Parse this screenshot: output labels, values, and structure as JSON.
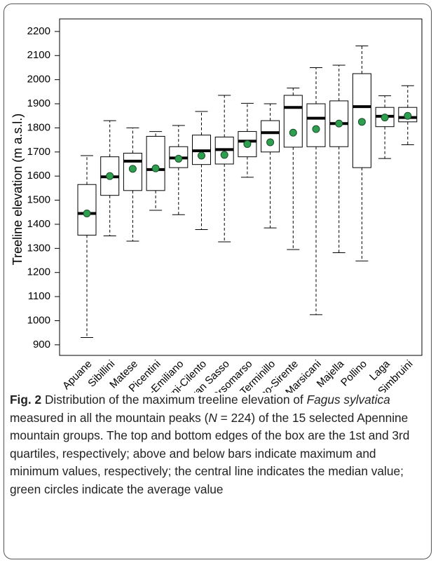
{
  "chart_data": {
    "type": "box",
    "y_label": "Treeline elevation (m a.s.l.)",
    "categories": [
      "Apuane",
      "Sibillini",
      "Matese",
      "Picentini",
      "Tosco-Emiliano",
      "Alburni-Cilento",
      "Gran Sasso",
      "Orsomarso",
      "Terminillo",
      "Velino-Sirente",
      "Marsicani",
      "Majella",
      "Pollino",
      "Laga",
      "Simbruini"
    ],
    "min": [
      930,
      1352,
      1330,
      1458,
      1440,
      1378,
      1327,
      1595,
      1385,
      1295,
      1025,
      1282,
      1248,
      1673,
      1730
    ],
    "q1": [
      1355,
      1520,
      1540,
      1540,
      1635,
      1648,
      1650,
      1680,
      1700,
      1720,
      1722,
      1722,
      1635,
      1805,
      1825
    ],
    "median": [
      1445,
      1597,
      1662,
      1627,
      1675,
      1705,
      1710,
      1745,
      1780,
      1885,
      1840,
      1818,
      1888,
      1848,
      1843
    ],
    "q3": [
      1565,
      1680,
      1695,
      1765,
      1722,
      1770,
      1762,
      1785,
      1830,
      1935,
      1900,
      1912,
      2025,
      1885,
      1885
    ],
    "max": [
      1685,
      1830,
      1800,
      1785,
      1810,
      1868,
      1935,
      1902,
      1900,
      1965,
      2050,
      2060,
      2140,
      1933,
      1975
    ],
    "mean": [
      1445,
      1600,
      1630,
      1632,
      1672,
      1685,
      1688,
      1733,
      1740,
      1780,
      1795,
      1818,
      1825,
      1843,
      1850
    ],
    "mean_color": "#2e9e4f",
    "ylim": [
      856,
      2252
    ],
    "yticks": [
      900,
      1000,
      1100,
      1200,
      1300,
      1400,
      1500,
      1600,
      1700,
      1800,
      1900,
      2000,
      2100,
      2200
    ]
  },
  "caption": {
    "label": "Fig. 2",
    "segments": [
      {
        "text": "Distribution of the maximum treeline elevation of ",
        "italic": false
      },
      {
        "text": "Fagus sylvatica",
        "italic": true
      },
      {
        "text": " measured in all the mountain peaks (",
        "italic": false
      },
      {
        "text": "N",
        "italic": true
      },
      {
        "text": " = 224) of the 15 selected Apennine mountain groups. The top and bottom edges of the box are the 1st and 3rd quartiles, respectively; above and below bars indicate maximum and minimum values, respectively; the central line indicates the median value; green circles indicate the average value",
        "italic": false
      }
    ]
  }
}
